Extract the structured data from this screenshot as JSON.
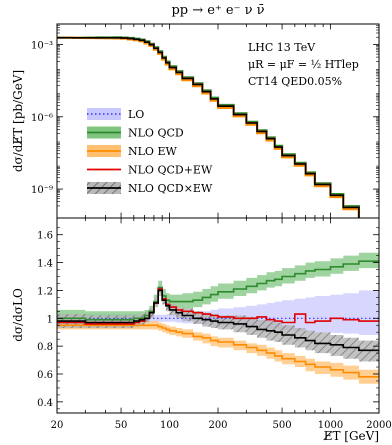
{
  "chart_data": [
    {
      "type": "line",
      "title": "pp → e⁺ e⁻ ν ν̄",
      "ylabel": "dσ/dE̸T [pb/GeV]",
      "yscale": "log",
      "xscale": "log",
      "ylim_log10": [
        -10.2,
        -2.15
      ],
      "xlim": [
        20,
        2000
      ],
      "yticks": [
        {
          "label": "10⁻³",
          "value": 0.001
        },
        {
          "label": "10⁻⁶",
          "value": 1e-06
        },
        {
          "label": "10⁻⁹",
          "value": 1e-09
        }
      ],
      "annotation": {
        "line1": "LHC 13 TeV",
        "line2": "μR = μF = ½ HTlep",
        "line3": "CT14 QED0.05%"
      },
      "legend_position": "lower-left",
      "legend": [
        {
          "label": "LO",
          "color": "#3333ff",
          "band": "#c8c8ff",
          "style": "dotted"
        },
        {
          "label": "NLO QCD",
          "color": "#2e8b2e",
          "band": "#7fc47f",
          "style": "solid"
        },
        {
          "label": "NLO EW",
          "color": "#ff8c00",
          "band": "#ffbf70",
          "style": "solid"
        },
        {
          "label": "NLO QCD+EW",
          "color": "#e00000",
          "band": "",
          "style": "solid"
        },
        {
          "label": "NLO QCD×EW",
          "color": "#000000",
          "band": "#b0b0b0",
          "style": "hatched"
        }
      ],
      "bin_edges": [
        20,
        25,
        30,
        35,
        40,
        45,
        50,
        55,
        60,
        65,
        70,
        75,
        80,
        85,
        90,
        95,
        100,
        110,
        120,
        140,
        160,
        180,
        200,
        250,
        300,
        350,
        400,
        450,
        500,
        600,
        700,
        800,
        1000,
        1200,
        1500,
        2000
      ],
      "log10_xsec_nloqcdew": [
        -2.72,
        -2.72,
        -2.72,
        -2.72,
        -2.72,
        -2.72,
        -2.73,
        -2.75,
        -2.78,
        -2.82,
        -2.9,
        -3.0,
        -3.15,
        -3.32,
        -3.55,
        -3.75,
        -3.95,
        -4.15,
        -4.4,
        -4.65,
        -4.95,
        -5.25,
        -5.55,
        -5.9,
        -6.25,
        -6.6,
        -6.9,
        -7.25,
        -7.6,
        -7.95,
        -8.35,
        -8.8,
        -9.25,
        -9.75,
        -10.3
      ]
    },
    {
      "type": "line",
      "ylabel": "dσ/dσLO",
      "xlabel": "E̸T [GeV]",
      "xscale": "log",
      "xlim": [
        20,
        2000
      ],
      "ylim": [
        0.32,
        1.72
      ],
      "yticks": [
        0.4,
        0.6,
        0.8,
        1,
        1.2,
        1.4,
        1.6
      ],
      "xticks": [
        20,
        50,
        100,
        200,
        500,
        1000,
        2000
      ],
      "bin_edges": [
        20,
        25,
        30,
        35,
        40,
        45,
        50,
        55,
        60,
        65,
        70,
        75,
        80,
        85,
        90,
        95,
        100,
        110,
        120,
        140,
        160,
        180,
        200,
        250,
        300,
        350,
        400,
        450,
        500,
        600,
        700,
        800,
        1000,
        1200,
        1500,
        2000
      ],
      "series": [
        {
          "name": "LO",
          "color": "#3333ff",
          "band": "#c8c8ff",
          "values": [
            1,
            1,
            1,
            1,
            1,
            1,
            1,
            1,
            1,
            1,
            1,
            1,
            1,
            1,
            1,
            1,
            1,
            1,
            1,
            1,
            1,
            1,
            1,
            1,
            1,
            1,
            1,
            1,
            1,
            1,
            1,
            1,
            1,
            1,
            1
          ],
          "lo": [
            0.97,
            0.97,
            0.97,
            0.97,
            0.97,
            0.97,
            0.97,
            0.97,
            0.97,
            0.97,
            0.975,
            0.975,
            0.975,
            0.975,
            0.975,
            0.975,
            0.975,
            0.97,
            0.965,
            0.96,
            0.955,
            0.95,
            0.945,
            0.94,
            0.935,
            0.93,
            0.925,
            0.92,
            0.915,
            0.91,
            0.905,
            0.9,
            0.895,
            0.89,
            0.88
          ],
          "hi": [
            1.03,
            1.03,
            1.03,
            1.03,
            1.03,
            1.03,
            1.03,
            1.03,
            1.03,
            1.03,
            1.025,
            1.025,
            1.025,
            1.025,
            1.025,
            1.03,
            1.03,
            1.035,
            1.04,
            1.045,
            1.05,
            1.06,
            1.07,
            1.08,
            1.09,
            1.1,
            1.11,
            1.12,
            1.13,
            1.14,
            1.15,
            1.16,
            1.17,
            1.18,
            1.2
          ]
        },
        {
          "name": "NLO QCD",
          "color": "#2e8b2e",
          "band": "#7fc47f",
          "values": [
            1.0,
            1.0,
            0.99,
            0.99,
            0.99,
            0.99,
            0.99,
            0.99,
            1.0,
            1.0,
            1.02,
            1.05,
            1.12,
            1.22,
            1.16,
            1.13,
            1.12,
            1.12,
            1.12,
            1.13,
            1.15,
            1.17,
            1.19,
            1.21,
            1.23,
            1.25,
            1.27,
            1.28,
            1.3,
            1.32,
            1.34,
            1.35,
            1.37,
            1.39,
            1.41
          ],
          "lo": [
            0.95,
            0.95,
            0.95,
            0.95,
            0.95,
            0.95,
            0.95,
            0.95,
            0.96,
            0.97,
            0.99,
            1.02,
            1.09,
            1.18,
            1.12,
            1.09,
            1.07,
            1.07,
            1.07,
            1.08,
            1.1,
            1.12,
            1.14,
            1.16,
            1.18,
            1.2,
            1.22,
            1.23,
            1.25,
            1.27,
            1.29,
            1.3,
            1.32,
            1.34,
            1.36
          ],
          "hi": [
            1.06,
            1.06,
            1.05,
            1.05,
            1.05,
            1.05,
            1.05,
            1.05,
            1.05,
            1.05,
            1.06,
            1.09,
            1.17,
            1.27,
            1.21,
            1.18,
            1.17,
            1.17,
            1.18,
            1.19,
            1.21,
            1.23,
            1.25,
            1.27,
            1.29,
            1.31,
            1.33,
            1.34,
            1.36,
            1.38,
            1.4,
            1.41,
            1.43,
            1.45,
            1.47
          ]
        },
        {
          "name": "NLO EW",
          "color": "#ff8c00",
          "band": "#ffbf70",
          "values": [
            0.95,
            0.95,
            0.95,
            0.95,
            0.95,
            0.95,
            0.95,
            0.95,
            0.95,
            0.95,
            0.95,
            0.95,
            0.95,
            0.94,
            0.93,
            0.92,
            0.91,
            0.9,
            0.89,
            0.87,
            0.86,
            0.84,
            0.83,
            0.81,
            0.79,
            0.77,
            0.75,
            0.73,
            0.71,
            0.69,
            0.67,
            0.65,
            0.63,
            0.61,
            0.58
          ],
          "lo": [
            0.92,
            0.92,
            0.92,
            0.92,
            0.92,
            0.92,
            0.92,
            0.92,
            0.92,
            0.92,
            0.92,
            0.92,
            0.92,
            0.91,
            0.9,
            0.89,
            0.88,
            0.87,
            0.86,
            0.84,
            0.82,
            0.8,
            0.79,
            0.77,
            0.75,
            0.73,
            0.71,
            0.69,
            0.67,
            0.65,
            0.62,
            0.6,
            0.58,
            0.56,
            0.53
          ],
          "hi": [
            0.98,
            0.98,
            0.98,
            0.98,
            0.98,
            0.98,
            0.98,
            0.98,
            0.98,
            0.98,
            0.98,
            0.98,
            0.98,
            0.97,
            0.96,
            0.95,
            0.94,
            0.93,
            0.92,
            0.9,
            0.89,
            0.87,
            0.86,
            0.84,
            0.82,
            0.81,
            0.79,
            0.77,
            0.75,
            0.73,
            0.71,
            0.69,
            0.68,
            0.66,
            0.63
          ]
        },
        {
          "name": "NLO QCD+EW",
          "color": "#e00000",
          "band": "",
          "values": [
            0.97,
            0.97,
            0.96,
            0.96,
            0.96,
            0.96,
            0.96,
            0.96,
            0.97,
            0.98,
            1.0,
            1.04,
            1.11,
            1.21,
            1.14,
            1.1,
            1.08,
            1.06,
            1.05,
            1.04,
            1.03,
            1.02,
            1.01,
            1.0,
            1.0,
            1.01,
            0.99,
            0.98,
            0.97,
            1.03,
            0.97,
            0.98,
            1.0,
            0.99,
            0.98
          ]
        },
        {
          "name": "NLO QCD×EW",
          "color": "#000000",
          "band": "#b0b0b0",
          "values": [
            0.98,
            0.98,
            0.97,
            0.97,
            0.97,
            0.97,
            0.97,
            0.97,
            0.98,
            0.99,
            1.0,
            1.04,
            1.11,
            1.2,
            1.13,
            1.09,
            1.06,
            1.04,
            1.02,
            1.0,
            0.99,
            0.98,
            0.97,
            0.96,
            0.94,
            0.92,
            0.91,
            0.9,
            0.88,
            0.86,
            0.84,
            0.82,
            0.81,
            0.79,
            0.77
          ],
          "lo": [
            0.93,
            0.93,
            0.93,
            0.93,
            0.93,
            0.93,
            0.93,
            0.93,
            0.94,
            0.95,
            0.97,
            1.0,
            1.08,
            1.16,
            1.1,
            1.05,
            1.02,
            1.0,
            0.98,
            0.96,
            0.94,
            0.93,
            0.92,
            0.9,
            0.88,
            0.86,
            0.84,
            0.83,
            0.81,
            0.79,
            0.77,
            0.75,
            0.73,
            0.71,
            0.69
          ],
          "hi": [
            1.03,
            1.03,
            1.02,
            1.02,
            1.02,
            1.02,
            1.02,
            1.02,
            1.02,
            1.03,
            1.04,
            1.07,
            1.15,
            1.24,
            1.17,
            1.13,
            1.1,
            1.08,
            1.07,
            1.05,
            1.04,
            1.03,
            1.02,
            1.02,
            1.01,
            0.99,
            0.98,
            0.97,
            0.95,
            0.93,
            0.91,
            0.9,
            0.88,
            0.86,
            0.84
          ]
        }
      ]
    }
  ]
}
